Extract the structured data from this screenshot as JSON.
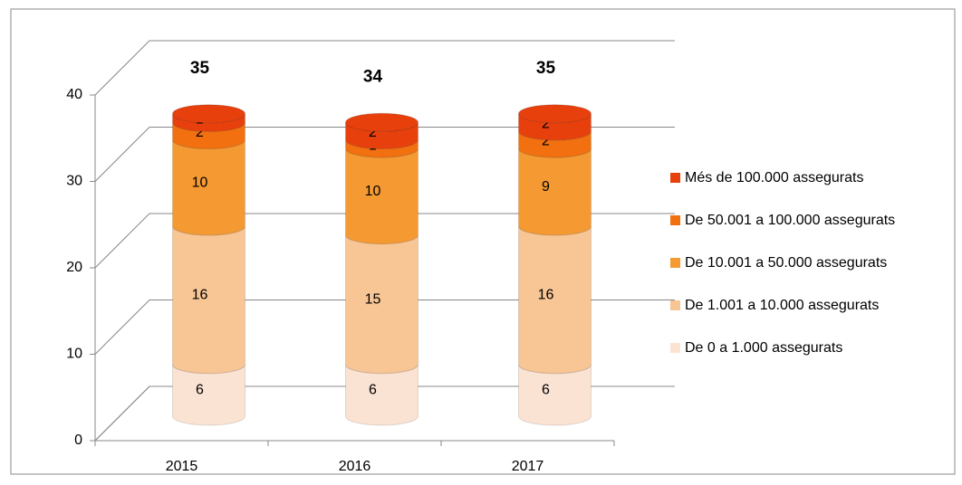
{
  "chart_data": {
    "type": "bar",
    "categories": [
      "2015",
      "2016",
      "2017"
    ],
    "series": [
      {
        "name": "De 0 a 1.000 assegurats",
        "color": "#fbe3d3",
        "values": [
          6,
          6,
          6
        ]
      },
      {
        "name": "De 1.001 a 10.000 assegurats",
        "color": "#f8c594",
        "values": [
          16,
          15,
          16
        ]
      },
      {
        "name": "De 10.001 a 50.000 assegurats",
        "color": "#f59a32",
        "values": [
          10,
          10,
          9
        ]
      },
      {
        "name": "De 50.001 a 100.000 assegurats",
        "color": "#f2700f",
        "values": [
          2,
          1,
          2
        ]
      },
      {
        "name": "Més de 100.000 assegurats",
        "color": "#e8400c",
        "values": [
          1,
          2,
          2
        ]
      }
    ],
    "totals": [
      35,
      34,
      35
    ],
    "ylim": [
      0,
      40
    ],
    "yticks": [
      0,
      10,
      20,
      30,
      40
    ],
    "grid": true,
    "legend": "right"
  }
}
